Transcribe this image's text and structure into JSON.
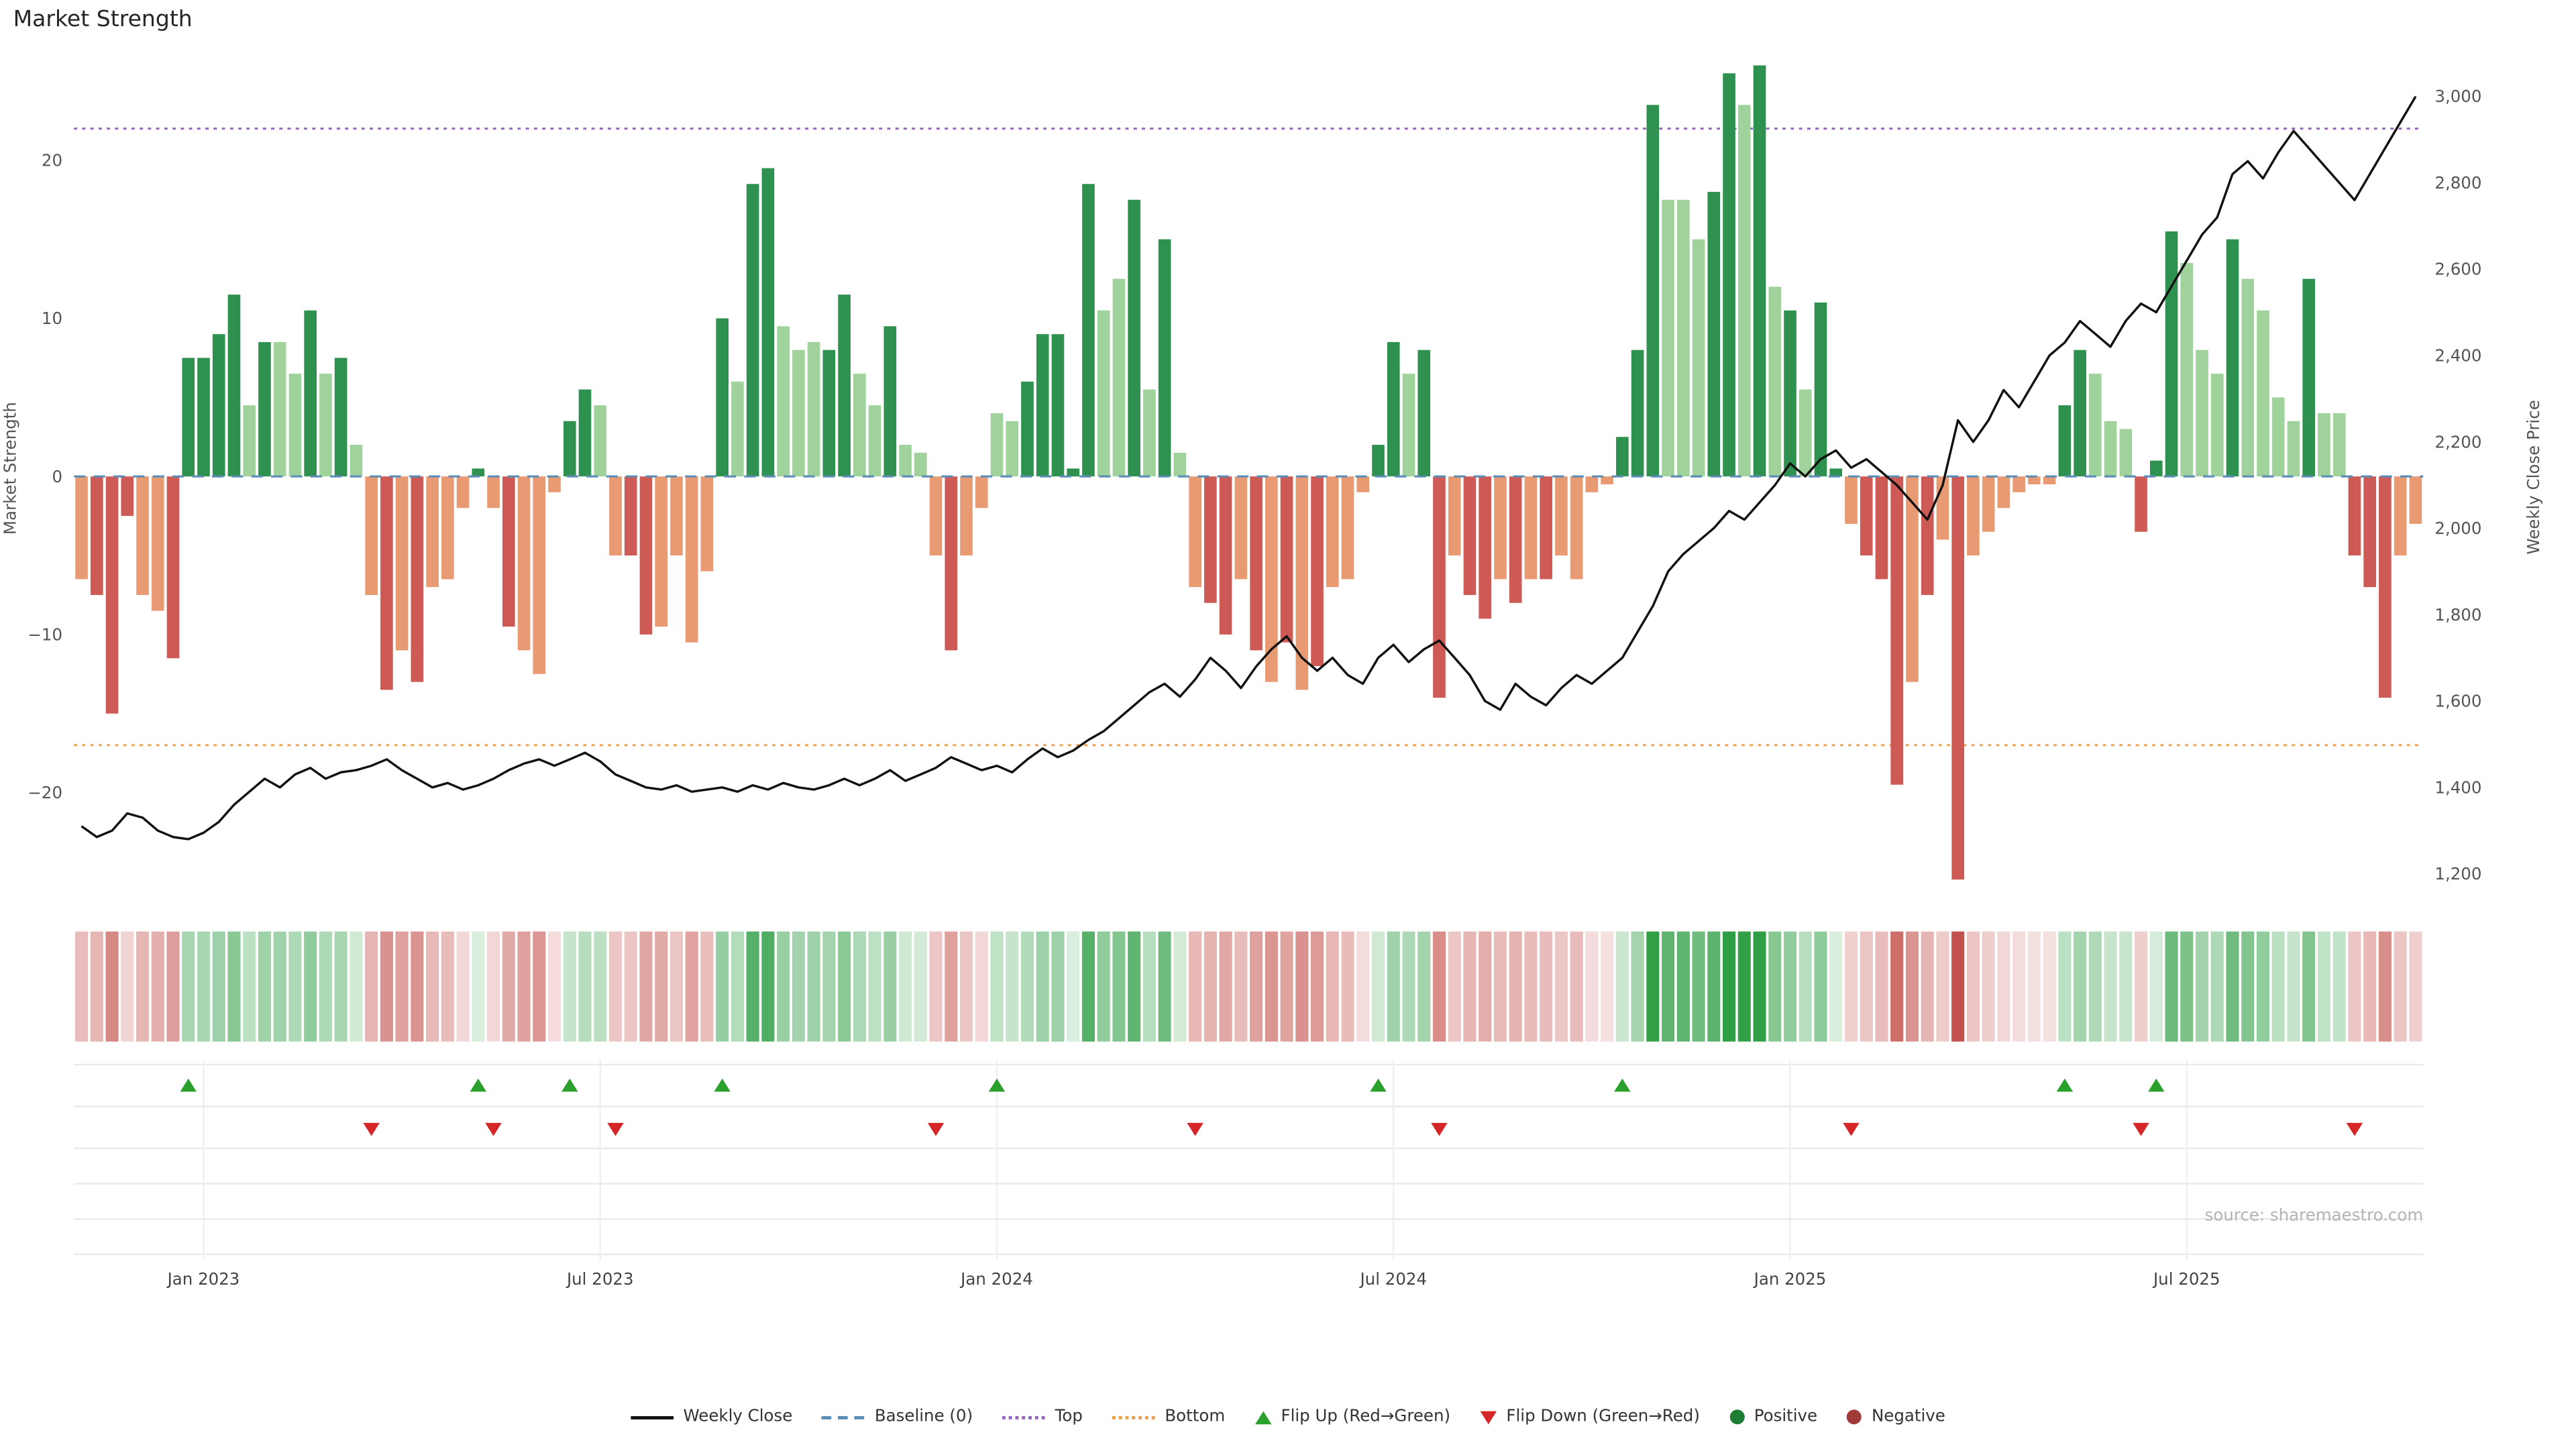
{
  "title": "Market Strength",
  "source": "source: sharemaestro.com",
  "colors": {
    "bar_pos_dark": "#2f9150",
    "bar_pos_light": "#9fd39b",
    "bar_neg_dark": "#cd5a54",
    "bar_neg_light": "#e89a72",
    "price_line": "#111111",
    "baseline": "#5b8db8",
    "top_line": "#9467bd",
    "bottom_line": "#e8a04c",
    "flip_up": "#2ca02c",
    "flip_down": "#d62728",
    "positive_dot": "#1e7e34",
    "negative_dot": "#a33a3a",
    "heat_pos": "#2f9e44",
    "heat_neg": "#c4524c"
  },
  "chart_data": {
    "type": "bar",
    "title": "Market Strength",
    "x_ticks": {
      "labels": [
        "Jan 2023",
        "Jul 2023",
        "Jan 2024",
        "Jul 2024",
        "Jan 2025",
        "Jul 2025"
      ],
      "indices": [
        8,
        34,
        60,
        86,
        112,
        138
      ]
    },
    "left_axis": {
      "label": "Market Strength",
      "ticks": [
        -20,
        -10,
        0,
        10,
        20
      ],
      "range": [
        -26.5,
        26.5
      ]
    },
    "right_axis": {
      "label": "Weekly Close Price",
      "ticks": [
        1200,
        1400,
        1600,
        1800,
        2000,
        2200,
        2400,
        2600,
        2800,
        3000
      ],
      "range": [
        1150,
        3090
      ]
    },
    "reference_lines": {
      "baseline": 0,
      "top": 22,
      "bottom": -17
    },
    "bars": {
      "name": "Market Strength",
      "values": [
        -6.5,
        -7.5,
        -15,
        -2.5,
        -7.5,
        -8.5,
        -11.5,
        7.5,
        7.5,
        9,
        11.5,
        4.5,
        8.5,
        8.5,
        6.5,
        10.5,
        6.5,
        7.5,
        2,
        -7.5,
        -13.5,
        -11,
        -13,
        -7,
        -6.5,
        -2,
        0.5,
        -2,
        -9.5,
        -11,
        -12.5,
        -1,
        3.5,
        5.5,
        4.5,
        -5,
        -5,
        -10,
        -9.5,
        -5,
        -10.5,
        -6,
        10,
        6,
        18.5,
        19.5,
        9.5,
        8,
        8.5,
        8,
        11.5,
        6.5,
        4.5,
        9.5,
        2,
        1.5,
        -5,
        -11,
        -5,
        -2,
        4,
        3.5,
        6,
        9,
        9,
        0.5,
        18.5,
        10.5,
        12.5,
        17.5,
        5.5,
        15,
        1.5,
        -7,
        -8,
        -10,
        -6.5,
        -11,
        -13,
        -10.5,
        -13.5,
        -12,
        -7,
        -6.5,
        -1,
        2,
        8.5,
        6.5,
        8,
        -14,
        -5,
        -7.5,
        -9,
        -6.5,
        -8,
        -6.5,
        -6.5,
        -5,
        -6.5,
        -1,
        -0.5,
        2.5,
        8,
        23.5,
        17.5,
        17.5,
        15,
        18,
        25.5,
        23.5,
        26,
        12,
        10.5,
        5.5,
        11,
        0.5,
        -3,
        -5,
        -6.5,
        -19.5,
        -13,
        -7.5,
        -4,
        -25.5,
        -5,
        -3.5,
        -2,
        -1,
        -0.5,
        -0.5,
        4.5,
        8,
        6.5,
        3.5,
        3,
        -3.5,
        1,
        15.5,
        13.5,
        8,
        6.5,
        15,
        12.5,
        10.5,
        5,
        3.5,
        12.5,
        4,
        4,
        -5,
        -7,
        -14,
        -5,
        -3
      ],
      "tones": [
        0,
        1,
        1,
        1,
        0,
        0,
        1,
        1,
        1,
        1,
        1,
        0,
        1,
        0,
        0,
        1,
        0,
        1,
        0,
        0,
        1,
        0,
        1,
        0,
        0,
        0,
        1,
        0,
        1,
        0,
        0,
        0,
        1,
        1,
        0,
        0,
        1,
        1,
        0,
        0,
        0,
        0,
        1,
        0,
        1,
        1,
        0,
        0,
        0,
        1,
        1,
        0,
        0,
        1,
        0,
        0,
        0,
        1,
        0,
        0,
        0,
        0,
        1,
        1,
        1,
        1,
        1,
        0,
        0,
        1,
        0,
        1,
        0,
        0,
        1,
        1,
        0,
        1,
        0,
        1,
        0,
        1,
        0,
        0,
        0,
        1,
        1,
        0,
        1,
        1,
        0,
        1,
        1,
        0,
        1,
        0,
        1,
        0,
        0,
        0,
        0,
        1,
        1,
        1,
        0,
        0,
        0,
        1,
        1,
        0,
        1,
        0,
        1,
        0,
        1,
        1,
        0,
        1,
        1,
        1,
        0,
        1,
        0,
        1,
        0,
        0,
        0,
        0,
        0,
        0,
        1,
        1,
        0,
        0,
        0,
        1,
        1,
        1,
        0,
        0,
        0,
        1,
        0,
        0,
        0,
        0,
        1,
        0,
        0,
        1,
        1,
        1,
        0,
        0
      ]
    },
    "line": {
      "name": "Weekly Close",
      "values": [
        1310,
        1285,
        1300,
        1340,
        1330,
        1300,
        1285,
        1280,
        1295,
        1320,
        1360,
        1390,
        1420,
        1400,
        1430,
        1445,
        1420,
        1435,
        1440,
        1450,
        1465,
        1440,
        1420,
        1400,
        1410,
        1395,
        1405,
        1420,
        1440,
        1455,
        1465,
        1450,
        1465,
        1480,
        1460,
        1430,
        1415,
        1400,
        1395,
        1405,
        1390,
        1395,
        1400,
        1390,
        1405,
        1395,
        1410,
        1400,
        1395,
        1405,
        1420,
        1405,
        1420,
        1440,
        1415,
        1430,
        1445,
        1470,
        1455,
        1440,
        1450,
        1435,
        1465,
        1490,
        1470,
        1485,
        1510,
        1530,
        1560,
        1590,
        1620,
        1640,
        1610,
        1650,
        1700,
        1670,
        1630,
        1680,
        1720,
        1750,
        1700,
        1670,
        1700,
        1660,
        1640,
        1700,
        1730,
        1690,
        1720,
        1740,
        1700,
        1660,
        1600,
        1580,
        1640,
        1610,
        1590,
        1630,
        1660,
        1640,
        1670,
        1700,
        1760,
        1820,
        1900,
        1940,
        1970,
        2000,
        2040,
        2020,
        2060,
        2100,
        2150,
        2120,
        2160,
        2180,
        2140,
        2160,
        2130,
        2100,
        2060,
        2020,
        2100,
        2250,
        2200,
        2250,
        2320,
        2280,
        2340,
        2400,
        2430,
        2480,
        2450,
        2420,
        2480,
        2520,
        2500,
        2560,
        2620,
        2680,
        2720,
        2820,
        2850,
        2810,
        2870,
        2920,
        2880,
        2840,
        2800,
        2760,
        2820,
        2880,
        2940,
        3000
      ]
    },
    "flip_up_indices": [
      7,
      26,
      32,
      42,
      60,
      85,
      101,
      130,
      136
    ],
    "flip_down_indices": [
      19,
      27,
      35,
      56,
      73,
      89,
      116,
      135,
      149
    ]
  },
  "legend": {
    "items": [
      {
        "label": "Weekly Close",
        "glyph": "line"
      },
      {
        "label": "Baseline (0)",
        "glyph": "dashed-line"
      },
      {
        "label": "Top",
        "glyph": "dotted-line-purple"
      },
      {
        "label": "Bottom",
        "glyph": "dotted-line-orange"
      },
      {
        "label": "Flip Up (Red→Green)",
        "glyph": "triangle-up"
      },
      {
        "label": "Flip Down (Green→Red)",
        "glyph": "triangle-down"
      },
      {
        "label": "Positive",
        "glyph": "circle-green"
      },
      {
        "label": "Negative",
        "glyph": "circle-red"
      }
    ]
  }
}
